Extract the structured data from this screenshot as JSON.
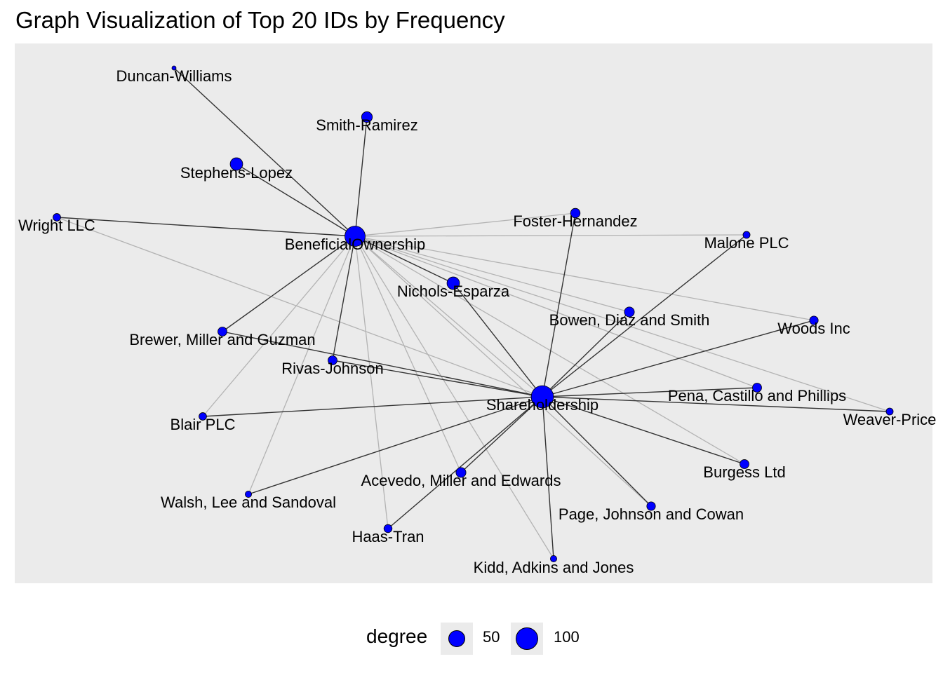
{
  "chart_data": {
    "type": "network",
    "title": "Graph Visualization of Top 20 IDs by Frequency",
    "legend": {
      "title": "degree",
      "position": "bottom",
      "entries": [
        {
          "label": "50",
          "degree": 50
        },
        {
          "label": "100",
          "degree": 100
        }
      ]
    },
    "node_color": "#0000ff",
    "panel_background": "#ebebeb",
    "edge_colors": {
      "dark": "#333333",
      "light": "#b3b3b3"
    },
    "nodes": [
      {
        "id": "beneficial",
        "label": "BeneficialOwnership",
        "degree": 100
      },
      {
        "id": "shareholdership",
        "label": "Shareholdership",
        "degree": 120
      },
      {
        "id": "duncan",
        "label": "Duncan-Williams",
        "degree": 3
      },
      {
        "id": "smith",
        "label": "Smith-Ramirez",
        "degree": 28
      },
      {
        "id": "stephens",
        "label": "Stephens-Lopez",
        "degree": 38
      },
      {
        "id": "wright",
        "label": "Wright LLC",
        "degree": 14
      },
      {
        "id": "foster",
        "label": "Foster-Hernandez",
        "degree": 22
      },
      {
        "id": "malone",
        "label": "Malone PLC",
        "degree": 12
      },
      {
        "id": "nichols",
        "label": "Nichols-Esparza",
        "degree": 38
      },
      {
        "id": "bowen",
        "label": "Bowen, Diaz and Smith",
        "degree": 24
      },
      {
        "id": "woods",
        "label": "Woods Inc",
        "degree": 18
      },
      {
        "id": "brewer",
        "label": "Brewer, Miller and Guzman",
        "degree": 20
      },
      {
        "id": "rivas",
        "label": "Rivas-Johnson",
        "degree": 20
      },
      {
        "id": "pena",
        "label": "Pena, Castillo and Phillips",
        "degree": 20
      },
      {
        "id": "weaver",
        "label": "Weaver-Price",
        "degree": 12
      },
      {
        "id": "blair",
        "label": "Blair PLC",
        "degree": 14
      },
      {
        "id": "burgess",
        "label": "Burgess Ltd",
        "degree": 20
      },
      {
        "id": "acevedo",
        "label": "Acevedo, Miller and Edwards",
        "degree": 24
      },
      {
        "id": "walsh",
        "label": "Walsh, Lee and Sandoval",
        "degree": 10
      },
      {
        "id": "page",
        "label": "Page, Johnson and Cowan",
        "degree": 18
      },
      {
        "id": "haas",
        "label": "Haas-Tran",
        "degree": 16
      },
      {
        "id": "kidd",
        "label": "Kidd, Adkins and Jones",
        "degree": 10
      }
    ],
    "edges": [
      {
        "source": "beneficial",
        "target": "duncan",
        "type": "dark"
      },
      {
        "source": "beneficial",
        "target": "smith",
        "type": "dark"
      },
      {
        "source": "beneficial",
        "target": "stephens",
        "type": "dark"
      },
      {
        "source": "beneficial",
        "target": "wright",
        "type": "dark"
      },
      {
        "source": "beneficial",
        "target": "foster",
        "type": "light"
      },
      {
        "source": "beneficial",
        "target": "malone",
        "type": "light"
      },
      {
        "source": "beneficial",
        "target": "nichols",
        "type": "dark"
      },
      {
        "source": "beneficial",
        "target": "bowen",
        "type": "light"
      },
      {
        "source": "beneficial",
        "target": "woods",
        "type": "light"
      },
      {
        "source": "beneficial",
        "target": "brewer",
        "type": "dark"
      },
      {
        "source": "beneficial",
        "target": "rivas",
        "type": "dark"
      },
      {
        "source": "beneficial",
        "target": "pena",
        "type": "light"
      },
      {
        "source": "beneficial",
        "target": "weaver",
        "type": "light"
      },
      {
        "source": "beneficial",
        "target": "blair",
        "type": "light"
      },
      {
        "source": "beneficial",
        "target": "burgess",
        "type": "light"
      },
      {
        "source": "beneficial",
        "target": "acevedo",
        "type": "light"
      },
      {
        "source": "beneficial",
        "target": "walsh",
        "type": "light"
      },
      {
        "source": "beneficial",
        "target": "page",
        "type": "light"
      },
      {
        "source": "beneficial",
        "target": "haas",
        "type": "light"
      },
      {
        "source": "beneficial",
        "target": "kidd",
        "type": "light"
      },
      {
        "source": "beneficial",
        "target": "shareholdership",
        "type": "light"
      },
      {
        "source": "shareholdership",
        "target": "foster",
        "type": "dark"
      },
      {
        "source": "shareholdership",
        "target": "malone",
        "type": "dark"
      },
      {
        "source": "shareholdership",
        "target": "nichols",
        "type": "dark"
      },
      {
        "source": "shareholdership",
        "target": "bowen",
        "type": "dark"
      },
      {
        "source": "shareholdership",
        "target": "woods",
        "type": "dark"
      },
      {
        "source": "shareholdership",
        "target": "brewer",
        "type": "dark"
      },
      {
        "source": "shareholdership",
        "target": "rivas",
        "type": "dark"
      },
      {
        "source": "shareholdership",
        "target": "pena",
        "type": "dark"
      },
      {
        "source": "shareholdership",
        "target": "weaver",
        "type": "dark"
      },
      {
        "source": "shareholdership",
        "target": "blair",
        "type": "dark"
      },
      {
        "source": "shareholdership",
        "target": "burgess",
        "type": "dark"
      },
      {
        "source": "shareholdership",
        "target": "acevedo",
        "type": "dark"
      },
      {
        "source": "shareholdership",
        "target": "walsh",
        "type": "dark"
      },
      {
        "source": "shareholdership",
        "target": "page",
        "type": "dark"
      },
      {
        "source": "shareholdership",
        "target": "haas",
        "type": "dark"
      },
      {
        "source": "shareholdership",
        "target": "kidd",
        "type": "dark"
      },
      {
        "source": "shareholdership",
        "target": "wright",
        "type": "light"
      }
    ]
  }
}
